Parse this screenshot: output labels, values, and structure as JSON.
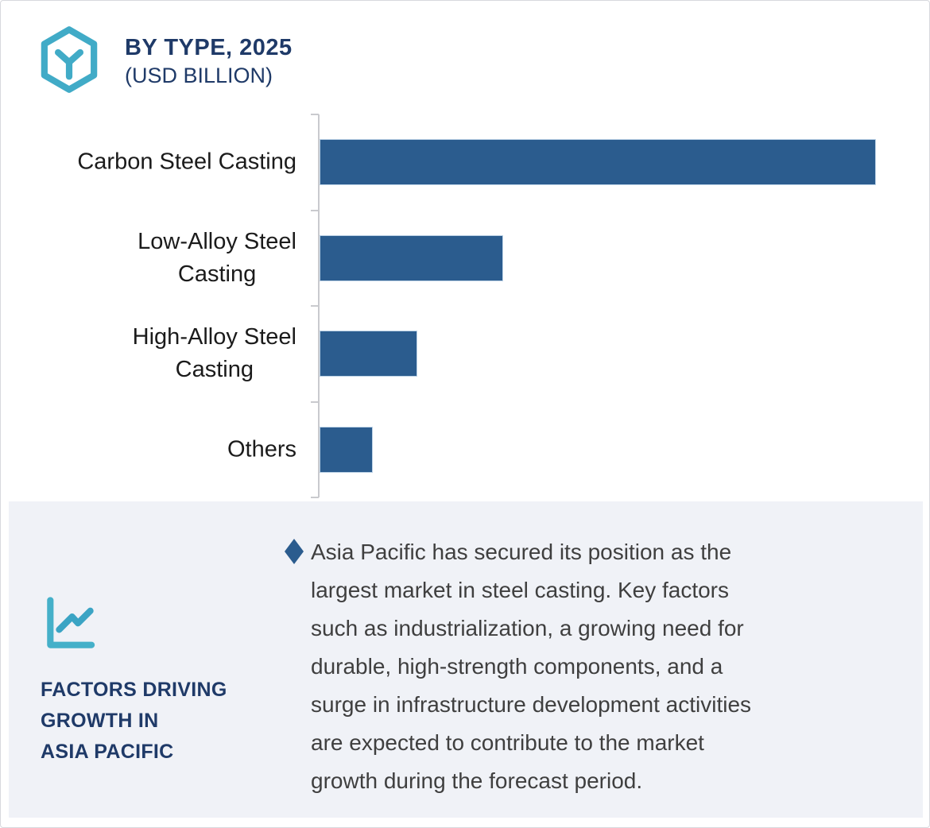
{
  "header": {
    "title": "BY TYPE, 2025",
    "subtitle": "(USD BILLION)",
    "icon": "hexagon-cube-icon"
  },
  "chart_data": {
    "type": "bar",
    "orientation": "horizontal",
    "title": "BY TYPE, 2025 (USD BILLION)",
    "unit": "USD Billion",
    "categories": [
      "Carbon Steel Casting",
      "Low-Alloy Steel Casting",
      "High-Alloy Steel Casting",
      "Others"
    ],
    "label_lines": [
      [
        "Carbon Steel Casting"
      ],
      [
        "Low-Alloy Steel",
        "Casting"
      ],
      [
        "High-Alloy Steel",
        "Casting"
      ],
      [
        "Others"
      ]
    ],
    "values_relative_to_max_pct": [
      100,
      33,
      17.5,
      9.5
    ],
    "value_axis_labels_shown": false,
    "data_labels_shown": false,
    "gridlines": false,
    "legend": "none",
    "bar_color": "#2b5c8e",
    "axis_color": "#c9cace"
  },
  "panel": {
    "icon": "line-chart-icon",
    "heading_lines": [
      "FACTORS DRIVING",
      "GROWTH IN",
      "ASIA PACIFIC"
    ],
    "bullet_icon": "diamond-bullet",
    "bullet_lines": [
      "Asia Pacific has secured its position as the",
      "largest market in steel casting. Key factors",
      "such as industrialization, a growing need for",
      "durable, high-strength components, and a",
      "surge in infrastructure development activities",
      "are expected to contribute to the market",
      "growth during the forecast period."
    ],
    "background_color": "#f0f2f7"
  },
  "colors": {
    "accent_teal": "#41abc7",
    "navy": "#1f3a68",
    "bar_blue": "#2b5c8e",
    "body_text": "#3f3f3f"
  }
}
